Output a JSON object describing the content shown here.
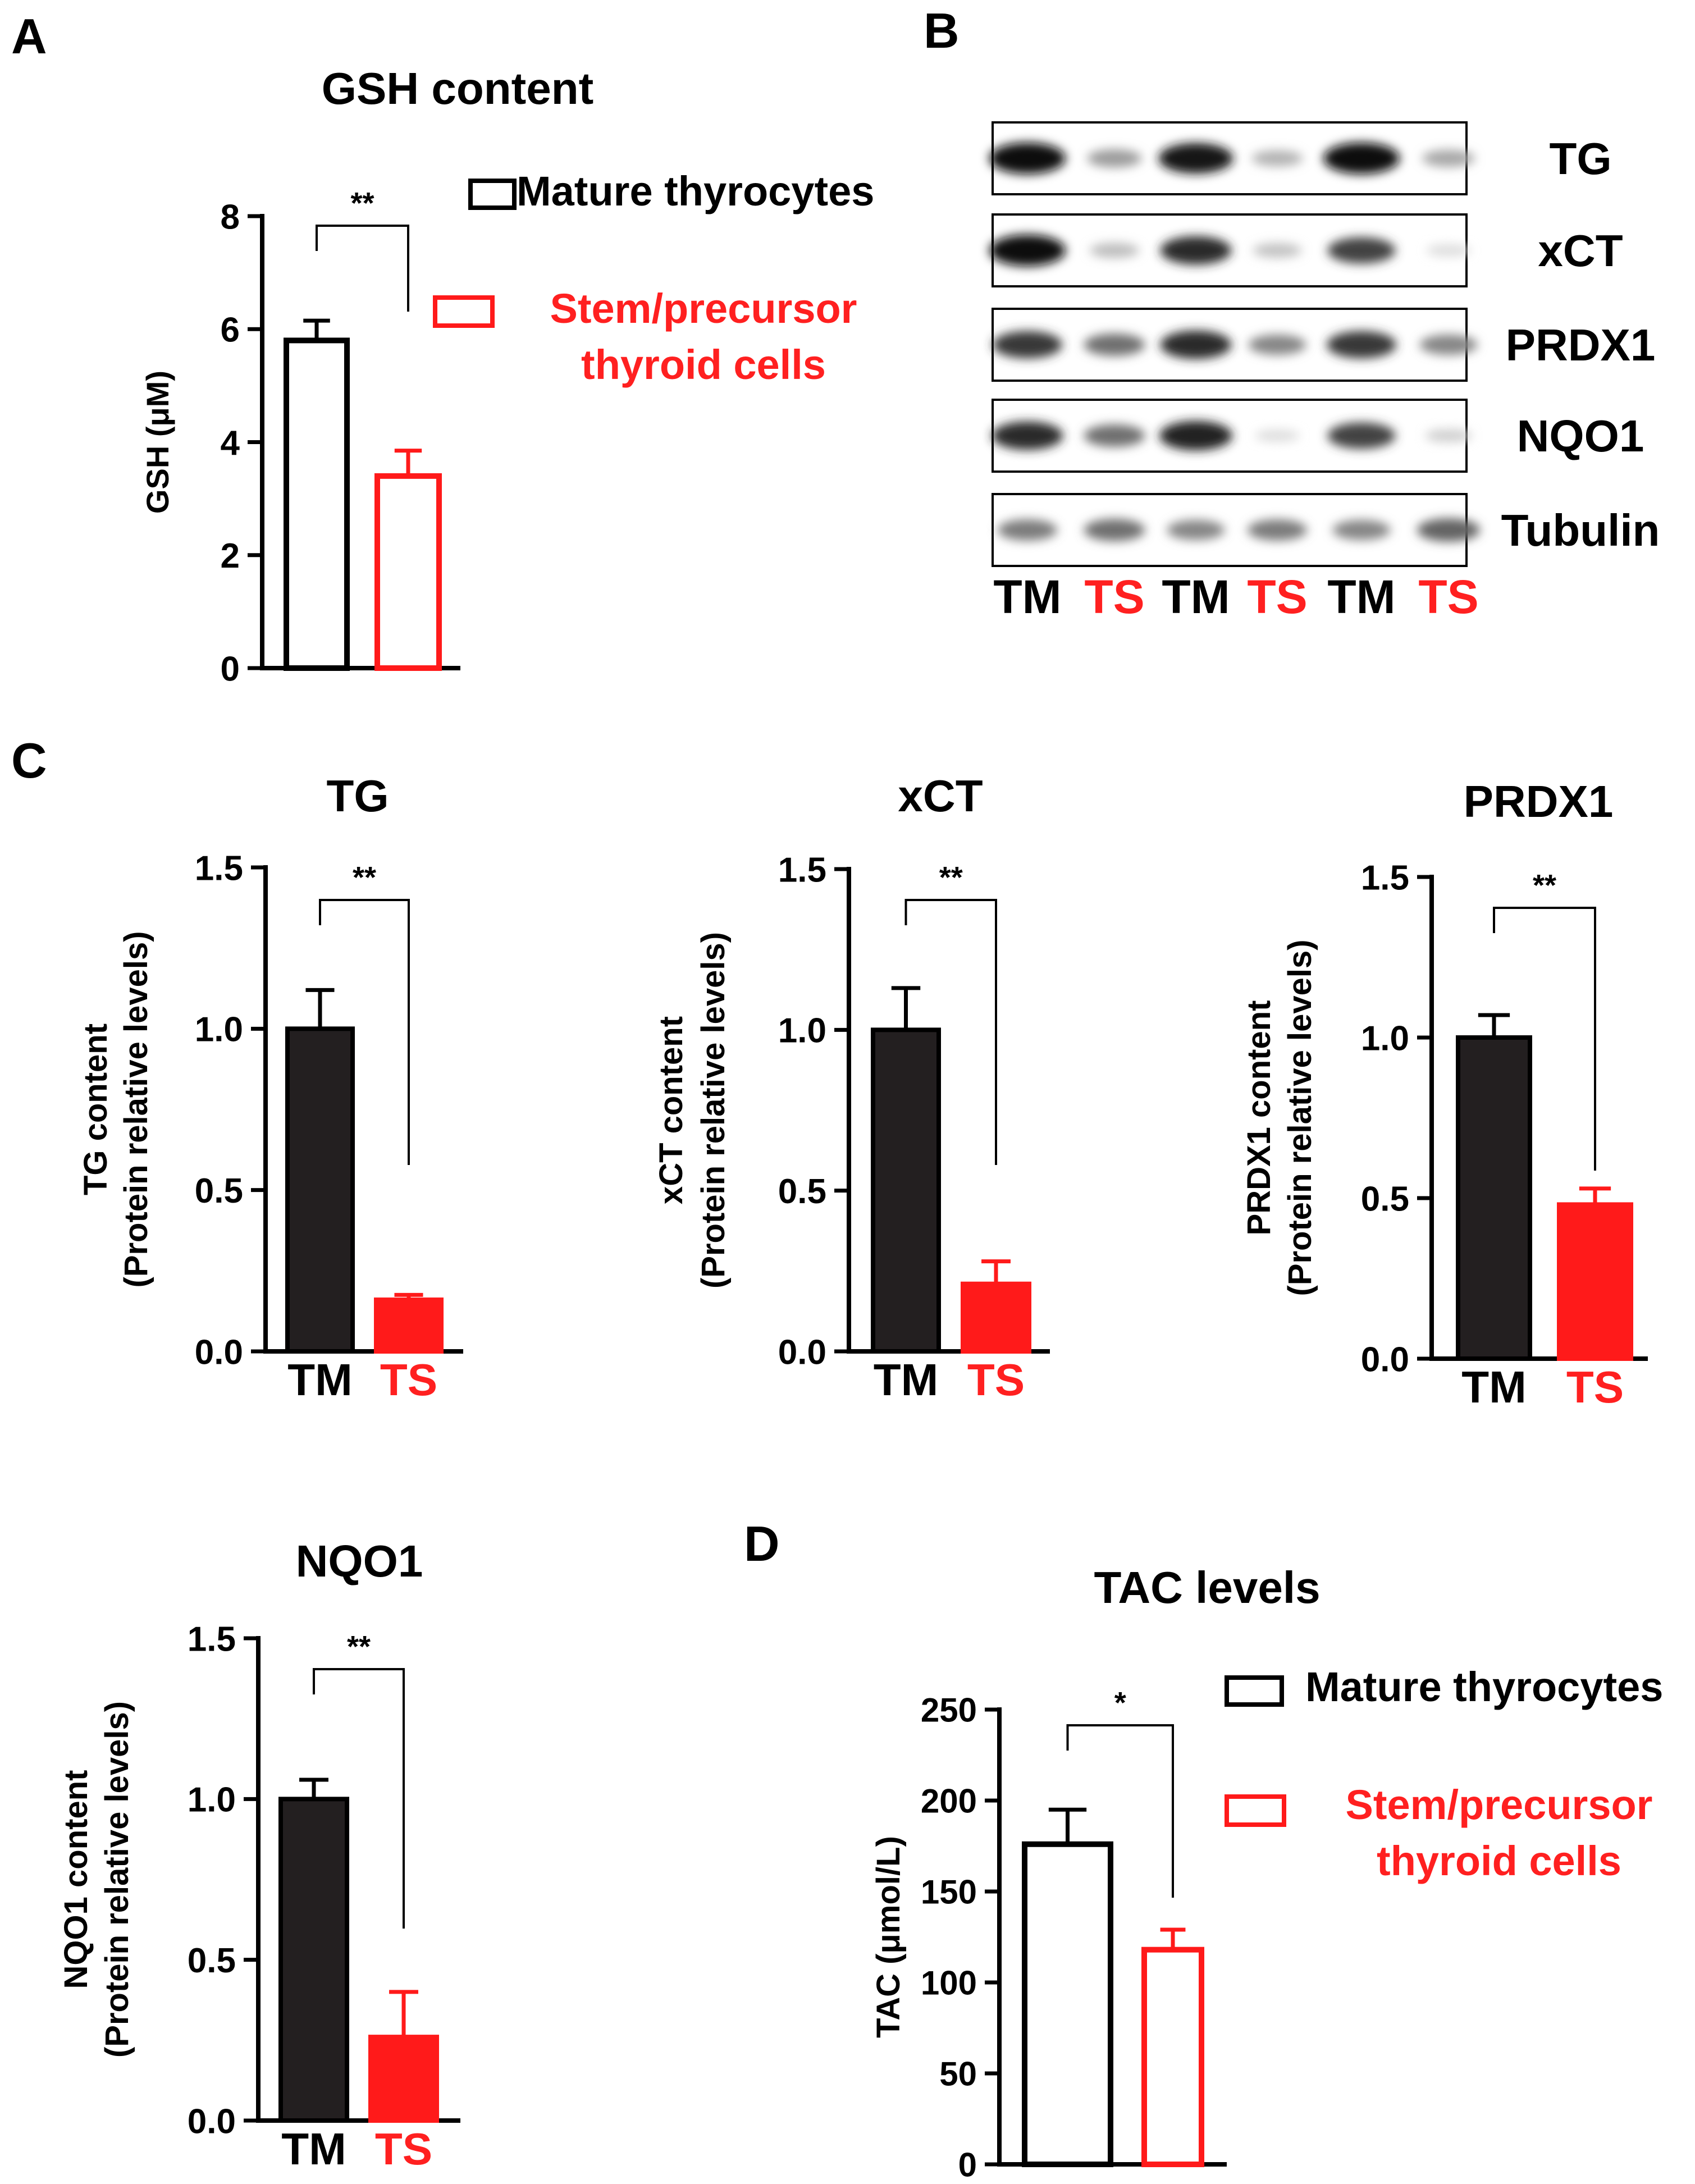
{
  "colors": {
    "black": "#000000",
    "dark_fill": "#231f20",
    "red": "#ff1a1a",
    "red_text": "#ff2020",
    "white": "#ffffff"
  },
  "panel_labels": {
    "a": "A",
    "b": "B",
    "c": "C",
    "d": "D"
  },
  "legend": {
    "mature": "Mature thyrocytes",
    "stem_line1": "Stem/precursor",
    "stem_line2": "thyroid cells"
  },
  "blot": {
    "rows": [
      "TG",
      "xCT",
      "PRDX1",
      "NQO1",
      "Tubulin"
    ],
    "lanes": [
      "TM",
      "TS",
      "TM",
      "TS",
      "TM",
      "TS"
    ],
    "band_intensity": [
      [
        1.0,
        0.35,
        0.95,
        0.25,
        1.0,
        0.3
      ],
      [
        1.0,
        0.2,
        0.85,
        0.18,
        0.75,
        0.06
      ],
      [
        0.8,
        0.55,
        0.85,
        0.45,
        0.8,
        0.45
      ],
      [
        0.85,
        0.55,
        0.9,
        0.06,
        0.75,
        0.12
      ],
      [
        0.5,
        0.55,
        0.45,
        0.5,
        0.45,
        0.6
      ]
    ]
  },
  "chart_data": [
    {
      "id": "A",
      "type": "bar",
      "title": "GSH content",
      "ylabel": "GSH (μM)",
      "ylabel2": "",
      "categories": [
        "",
        ""
      ],
      "values": [
        5.8,
        3.4
      ],
      "errors": [
        0.35,
        0.45
      ],
      "ylim": [
        0,
        8
      ],
      "yticks": [
        0,
        2,
        4,
        6,
        8
      ],
      "significance": "**",
      "bar_style": "outline",
      "legend": [
        "Mature thyrocytes",
        "Stem/precursor thyroid cells"
      ]
    },
    {
      "id": "C-TG",
      "type": "bar",
      "title": "TG",
      "ylabel": "TG content",
      "ylabel2": "(Protein relative levels)",
      "categories": [
        "TM",
        "TS"
      ],
      "values": [
        1.0,
        0.16
      ],
      "errors": [
        0.12,
        0.015
      ],
      "ylim": [
        0,
        1.5
      ],
      "yticks": [
        0.0,
        0.5,
        1.0,
        1.5
      ],
      "significance": "**",
      "bar_style": "filled"
    },
    {
      "id": "C-xCT",
      "type": "bar",
      "title": "xCT",
      "ylabel": "xCT content",
      "ylabel2": "(Protein relative levels)",
      "categories": [
        "TM",
        "TS"
      ],
      "values": [
        1.0,
        0.21
      ],
      "errors": [
        0.13,
        0.07
      ],
      "ylim": [
        0,
        1.5
      ],
      "yticks": [
        0.0,
        0.5,
        1.0,
        1.5
      ],
      "significance": "**",
      "bar_style": "filled"
    },
    {
      "id": "C-PRDX1",
      "type": "bar",
      "title": "PRDX1",
      "ylabel": "PRDX1 content",
      "ylabel2": "(Protein relative levels)",
      "categories": [
        "TM",
        "TS"
      ],
      "values": [
        1.0,
        0.48
      ],
      "errors": [
        0.07,
        0.05
      ],
      "ylim": [
        0,
        1.5
      ],
      "yticks": [
        0.0,
        0.5,
        1.0,
        1.5
      ],
      "significance": "**",
      "bar_style": "filled"
    },
    {
      "id": "C-NQO1",
      "type": "bar",
      "title": "NQO1",
      "ylabel": "NQO1 content",
      "ylabel2": "(Protein relative levels)",
      "categories": [
        "TM",
        "TS"
      ],
      "values": [
        1.0,
        0.26
      ],
      "errors": [
        0.06,
        0.14
      ],
      "ylim": [
        0,
        1.5
      ],
      "yticks": [
        0.0,
        0.5,
        1.0,
        1.5
      ],
      "significance": "**",
      "bar_style": "filled"
    },
    {
      "id": "D",
      "type": "bar",
      "title": "TAC levels",
      "ylabel": "TAC (μmol/L)",
      "ylabel2": "",
      "categories": [
        "",
        ""
      ],
      "values": [
        176,
        118
      ],
      "errors": [
        19,
        11
      ],
      "ylim": [
        0,
        250
      ],
      "yticks": [
        0,
        50,
        100,
        150,
        200,
        250
      ],
      "significance": "*",
      "bar_style": "outline",
      "legend": [
        "Mature thyrocytes",
        "Stem/precursor thyroid cells"
      ]
    }
  ]
}
